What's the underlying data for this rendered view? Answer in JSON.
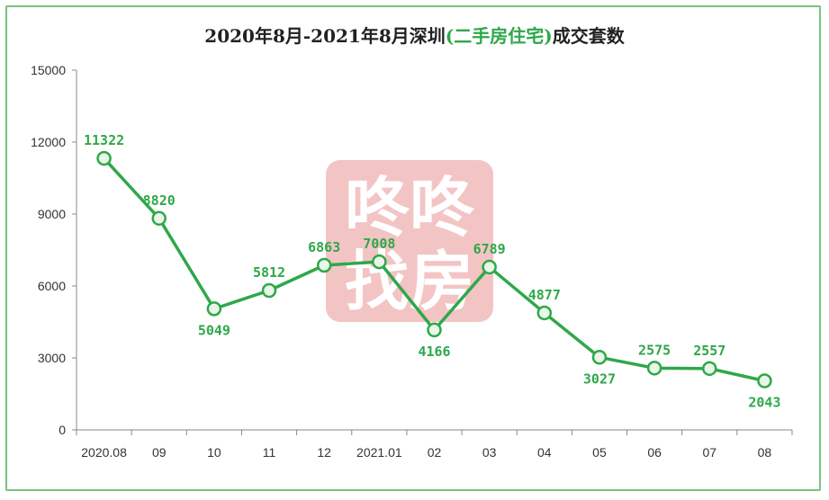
{
  "chart_data": {
    "type": "line",
    "title_parts": [
      "2020年8月-2021年8月深圳",
      "(二手房住宅)",
      "成交套数"
    ],
    "categories": [
      "2020.08",
      "09",
      "10",
      "11",
      "12",
      "2021.01",
      "02",
      "03",
      "04",
      "05",
      "06",
      "07",
      "08"
    ],
    "series": [
      {
        "values": [
          11322,
          8820,
          5049,
          5812,
          6863,
          7008,
          4166,
          6789,
          4877,
          3027,
          2575,
          2557,
          2043
        ],
        "color": "#2ea84a"
      }
    ],
    "label_positions": [
      "above",
      "above",
      "below",
      "above",
      "above",
      "above",
      "below",
      "above",
      "above",
      "below",
      "above",
      "above",
      "below"
    ],
    "y_ticks": [
      "0",
      "3000",
      "6000",
      "9000",
      "12000",
      "15000"
    ],
    "ylim": [
      0,
      15000
    ],
    "xlabel": "",
    "ylabel": "",
    "grid": false,
    "legend": "none"
  },
  "watermark": {
    "line1": "咚咚",
    "line2": "找房",
    "color": "#f3c4c4"
  }
}
